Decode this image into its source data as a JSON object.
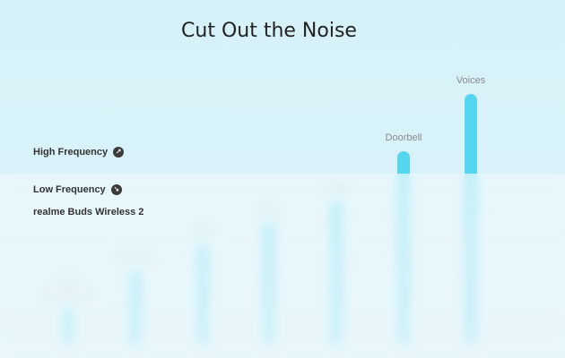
{
  "title": "Cut Out the Noise",
  "legend": {
    "high": {
      "label": "High Frequency",
      "icon": "arrow-up-right-icon"
    },
    "low": {
      "label": "Low Frequency",
      "icon": "arrow-down-right-icon"
    },
    "product": "realme Buds Wireless 2"
  },
  "noise_sources": [
    {
      "label": "Air\nConditioner",
      "level": 0.15
    },
    {
      "label": "Airplane",
      "level": 0.3
    },
    {
      "label": "Train",
      "level": 0.4
    },
    {
      "label": "Bus",
      "level": 0.49
    },
    {
      "label": "Traffic",
      "level": 0.57
    },
    {
      "label": "Doorbell",
      "level": 0.77
    },
    {
      "label": "Voices",
      "level": 1.0
    }
  ],
  "colors": {
    "bar": "#54d6f0",
    "background": "#ddf3f9"
  }
}
